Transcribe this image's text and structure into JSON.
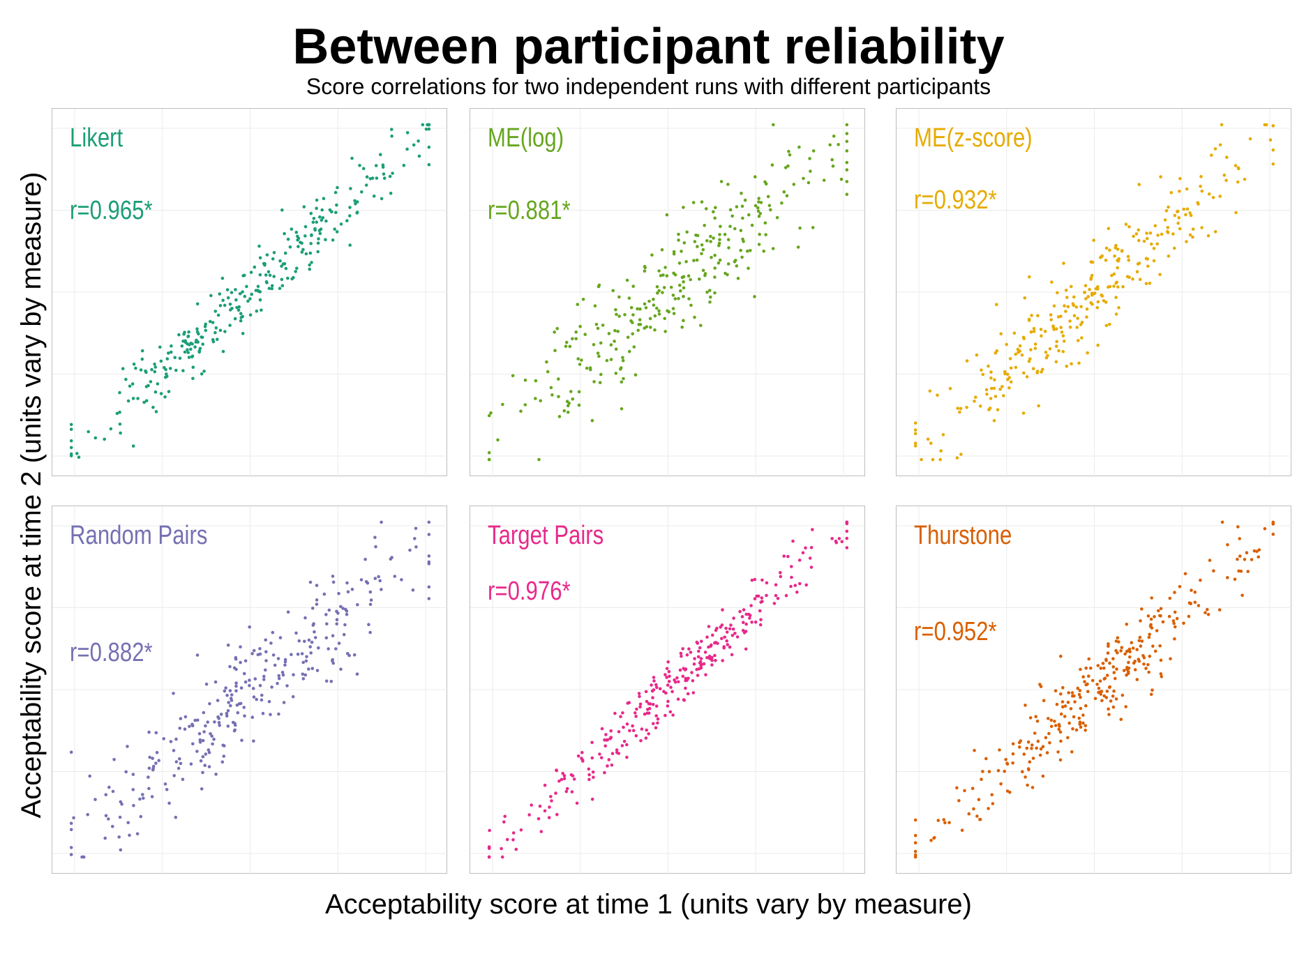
{
  "title": "Between participant reliability",
  "subtitle": "Score correlations for two independent runs with different participants",
  "xlabel": "Acceptability score at time 1 (units vary by measure)",
  "ylabel": "Acceptability score at time 2 (units vary by measure)",
  "chart_data": [
    {
      "type": "scatter",
      "facet": "Likert",
      "annotation": "r=0.965*",
      "color": "#1b9e77",
      "r": 0.965,
      "n": 300,
      "xlim": [
        0,
        1
      ],
      "ylim": [
        0,
        1
      ],
      "grid": true,
      "seed": 11
    },
    {
      "type": "scatter",
      "facet": "ME(log)",
      "annotation": "r=0.881*",
      "color": "#66a61e",
      "r": 0.881,
      "n": 300,
      "xlim": [
        0,
        1
      ],
      "ylim": [
        0,
        1
      ],
      "grid": true,
      "seed": 23
    },
    {
      "type": "scatter",
      "facet": "ME(z-score)",
      "annotation": "r=0.932*",
      "color": "#e6ab02",
      "r": 0.932,
      "n": 300,
      "xlim": [
        0,
        1
      ],
      "ylim": [
        0,
        1
      ],
      "grid": true,
      "seed": 37
    },
    {
      "type": "scatter",
      "facet": "Random Pairs",
      "annotation": "r=0.882*",
      "color": "#7570b3",
      "r": 0.882,
      "n": 300,
      "xlim": [
        0,
        1
      ],
      "ylim": [
        0,
        1
      ],
      "grid": true,
      "seed": 41
    },
    {
      "type": "scatter",
      "facet": "Target Pairs",
      "annotation": "r=0.976*",
      "color": "#e7298a",
      "r": 0.976,
      "n": 300,
      "xlim": [
        0,
        1
      ],
      "ylim": [
        0,
        1
      ],
      "grid": true,
      "seed": 53
    },
    {
      "type": "scatter",
      "facet": "Thurstone",
      "annotation": "r=0.952*",
      "color": "#d95f02",
      "r": 0.952,
      "n": 300,
      "xlim": [
        0,
        1
      ],
      "ylim": [
        0,
        1
      ],
      "grid": true,
      "seed": 67
    }
  ]
}
